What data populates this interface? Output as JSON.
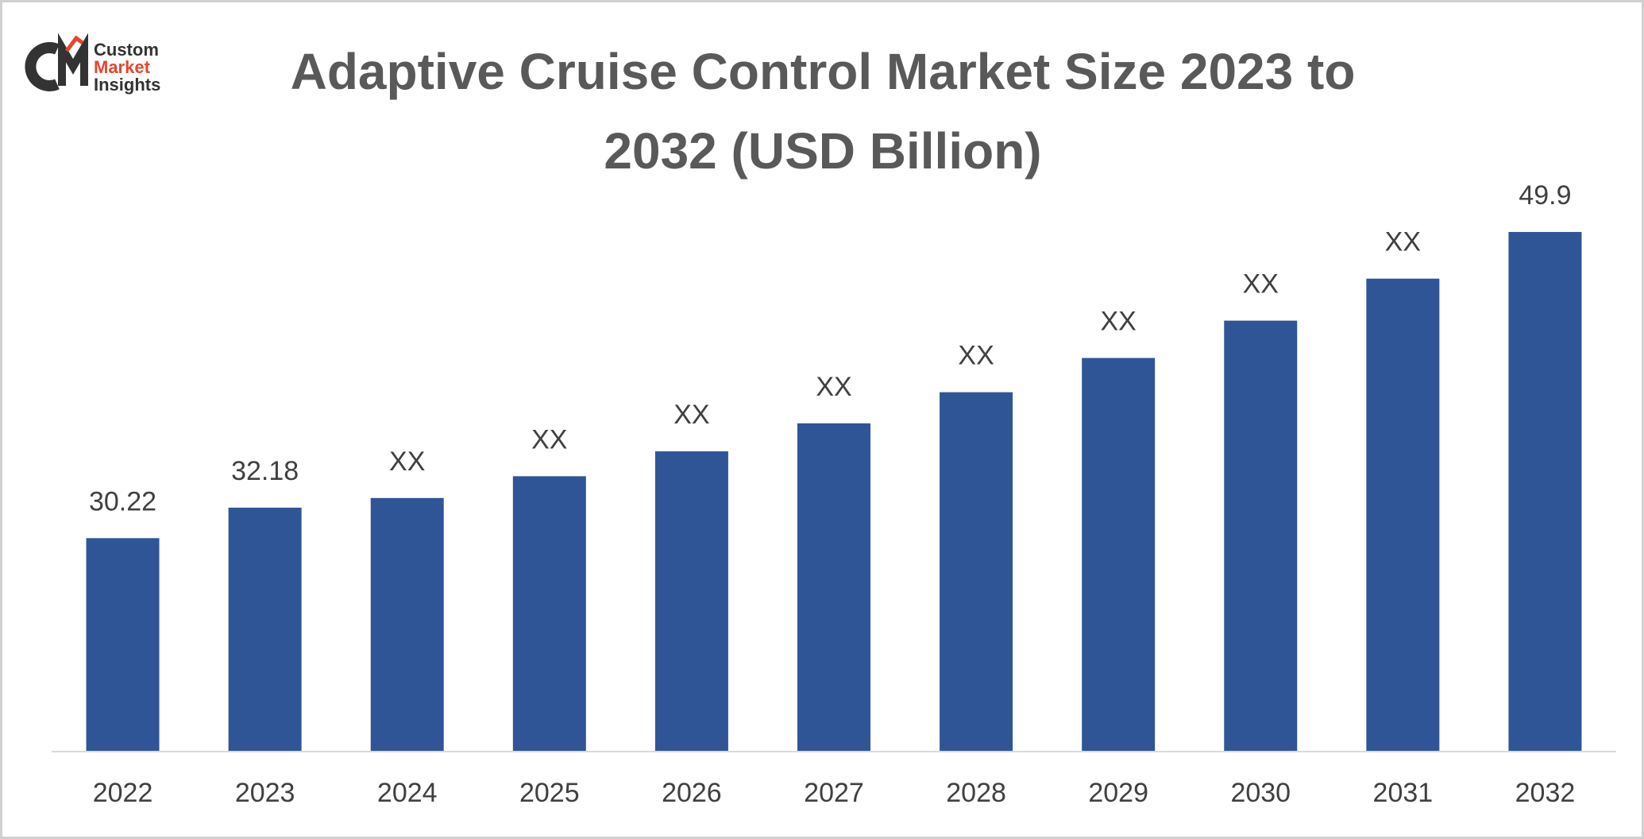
{
  "logo": [
    "Custom",
    "Market",
    "Insights"
  ],
  "chart_data": {
    "type": "bar",
    "title": "Adaptive Cruise Control Market Size 2023 to 2032 (USD Billion)",
    "categories": [
      "2022",
      "2023",
      "2024",
      "2025",
      "2026",
      "2027",
      "2028",
      "2029",
      "2030",
      "2031",
      "2032"
    ],
    "values": [
      30.22,
      32.18,
      32.8,
      34.2,
      35.8,
      37.6,
      39.6,
      41.8,
      44.2,
      46.9,
      49.9
    ],
    "value_labels": [
      "30.22",
      "32.18",
      "XX",
      "XX",
      "XX",
      "XX",
      "XX",
      "XX",
      "XX",
      "XX",
      "49.9"
    ],
    "color": "#2f5597",
    "ylim": [
      16.5,
      50
    ]
  }
}
